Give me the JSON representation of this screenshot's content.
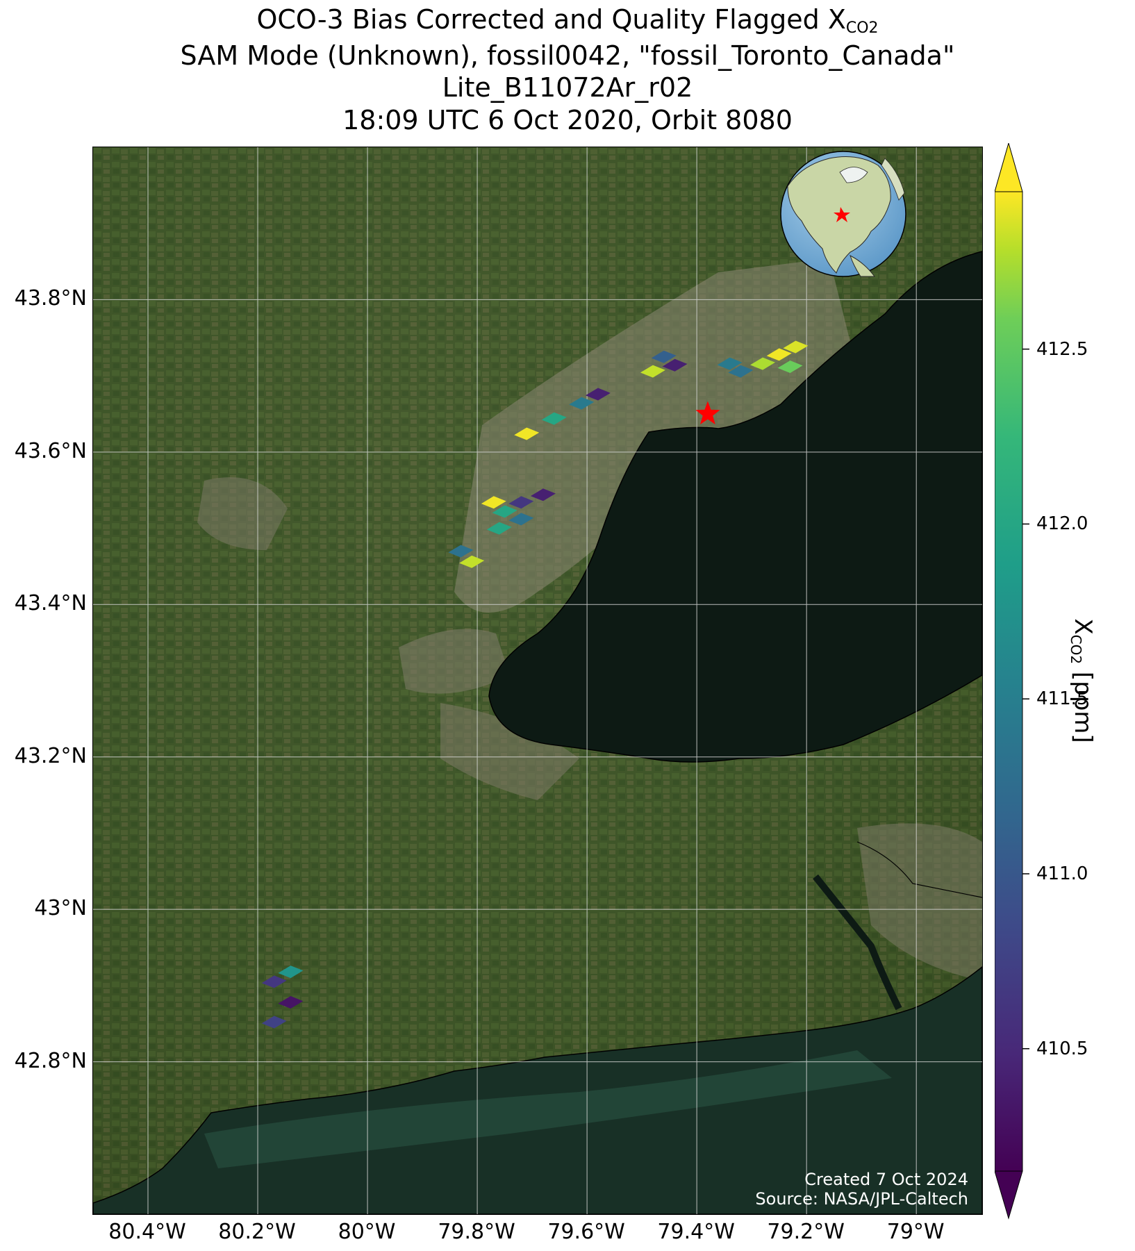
{
  "title": {
    "line1_prefix": "OCO-3 Bias Corrected and Quality Flagged X",
    "line1_sub": "CO2",
    "line2": "SAM Mode (Unknown), fossil0042, \"fossil_Toronto_Canada\"",
    "line3": "Lite_B11072Ar_r02",
    "line4": "18:09 UTC 6 Oct 2020, Orbit 8080"
  },
  "axes": {
    "lon_range": [
      -80.5,
      -78.88
    ],
    "lat_range": [
      42.6,
      44.0
    ],
    "lon_ticks": [
      {
        "value": -80.4,
        "label": "80.4°W"
      },
      {
        "value": -80.2,
        "label": "80.2°W"
      },
      {
        "value": -80.0,
        "label": "80°W"
      },
      {
        "value": -79.8,
        "label": "79.8°W"
      },
      {
        "value": -79.6,
        "label": "79.6°W"
      },
      {
        "value": -79.4,
        "label": "79.4°W"
      },
      {
        "value": -79.2,
        "label": "79.2°W"
      },
      {
        "value": -79.0,
        "label": "79°W"
      }
    ],
    "lat_ticks": [
      {
        "value": 43.8,
        "label": "43.8°N"
      },
      {
        "value": 43.6,
        "label": "43.6°N"
      },
      {
        "value": 43.4,
        "label": "43.4°N"
      },
      {
        "value": 43.2,
        "label": "43.2°N"
      },
      {
        "value": 43.0,
        "label": "43°N"
      },
      {
        "value": 42.8,
        "label": "42.8°N"
      }
    ],
    "grid": true
  },
  "target": {
    "lon": -79.38,
    "lat": 43.65,
    "color": "#ff0000",
    "marker": "star"
  },
  "colorbar": {
    "label_prefix": "X",
    "label_sub": "CO2",
    "label_suffix": " [ppm]",
    "range": [
      410.15,
      412.95
    ],
    "ticks": [
      {
        "value": 412.5,
        "label": "412.5"
      },
      {
        "value": 412.0,
        "label": "412.0"
      },
      {
        "value": 411.5,
        "label": "411.5"
      },
      {
        "value": 411.0,
        "label": "411.0"
      },
      {
        "value": 410.5,
        "label": "410.5"
      }
    ],
    "colormap": "viridis",
    "extend": "both"
  },
  "credit": {
    "line1": "Created 7 Oct 2024",
    "line2": "Source: NASA/JPL-Caltech"
  },
  "soundings": [
    {
      "lon": -79.46,
      "lat": 43.725,
      "xco2": 411.0
    },
    {
      "lon": -79.48,
      "lat": 43.706,
      "xco2": 412.7
    },
    {
      "lon": -79.44,
      "lat": 43.714,
      "xco2": 410.4
    },
    {
      "lon": -79.34,
      "lat": 43.716,
      "xco2": 411.3
    },
    {
      "lon": -79.32,
      "lat": 43.706,
      "xco2": 411.2
    },
    {
      "lon": -79.28,
      "lat": 43.716,
      "xco2": 412.6
    },
    {
      "lon": -79.25,
      "lat": 43.728,
      "xco2": 412.9
    },
    {
      "lon": -79.22,
      "lat": 43.738,
      "xco2": 412.8
    },
    {
      "lon": -79.23,
      "lat": 43.712,
      "xco2": 412.3
    },
    {
      "lon": -79.58,
      "lat": 43.676,
      "xco2": 410.4
    },
    {
      "lon": -79.61,
      "lat": 43.664,
      "xco2": 411.3
    },
    {
      "lon": -79.66,
      "lat": 43.644,
      "xco2": 411.8
    },
    {
      "lon": -79.71,
      "lat": 43.624,
      "xco2": 412.9
    },
    {
      "lon": -79.68,
      "lat": 43.544,
      "xco2": 410.4
    },
    {
      "lon": -79.72,
      "lat": 43.534,
      "xco2": 410.6
    },
    {
      "lon": -79.77,
      "lat": 43.534,
      "xco2": 412.9
    },
    {
      "lon": -79.75,
      "lat": 43.522,
      "xco2": 411.8
    },
    {
      "lon": -79.72,
      "lat": 43.512,
      "xco2": 411.2
    },
    {
      "lon": -79.76,
      "lat": 43.5,
      "xco2": 411.8
    },
    {
      "lon": -79.83,
      "lat": 43.47,
      "xco2": 411.2
    },
    {
      "lon": -79.81,
      "lat": 43.456,
      "xco2": 412.7
    },
    {
      "lon": -80.17,
      "lat": 42.905,
      "xco2": 410.6
    },
    {
      "lon": -80.14,
      "lat": 42.918,
      "xco2": 411.6
    },
    {
      "lon": -80.14,
      "lat": 42.878,
      "xco2": 410.3
    },
    {
      "lon": -80.17,
      "lat": 42.852,
      "xco2": 410.7
    }
  ],
  "inset_globe": {
    "land_color": "#c8d6a8",
    "ocean_color": "#7fb2dc"
  }
}
